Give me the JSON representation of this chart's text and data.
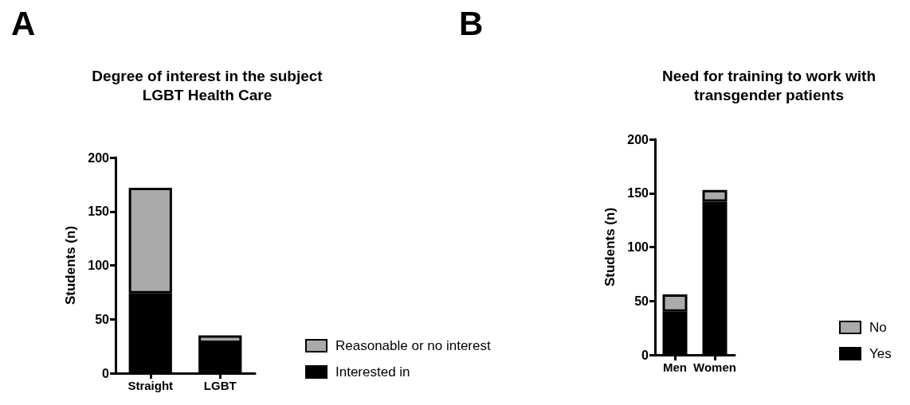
{
  "chart_data": [
    {
      "type": "bar",
      "title": "Degree of interest in the subject\nLGBT Health Care",
      "ylabel": "Students (n)",
      "annotations": [
        "A"
      ],
      "categories": [
        "Straight",
        "LGBT"
      ],
      "stacked": true,
      "legend": "right",
      "grid": false,
      "ylim": [
        0,
        200
      ],
      "yticks": [
        0,
        50,
        100,
        150,
        200
      ],
      "series": [
        {
          "name": "Interested in",
          "color": "#000000",
          "values": [
            74,
            28
          ]
        },
        {
          "name": "Reasonable or no interest",
          "color": "#aaaaaa",
          "values": [
            98,
            7
          ]
        }
      ]
    },
    {
      "type": "bar",
      "title": "Need for training to work with\ntransgender patients",
      "ylabel": "Students (n)",
      "annotations": [
        "B"
      ],
      "categories": [
        "Men",
        "Women"
      ],
      "stacked": true,
      "legend": "right",
      "grid": false,
      "ylim": [
        0,
        200
      ],
      "yticks": [
        0,
        50,
        100,
        150,
        200
      ],
      "series": [
        {
          "name": "Yes",
          "color": "#000000",
          "values": [
            40,
            142
          ]
        },
        {
          "name": "No",
          "color": "#aaaaaa",
          "values": [
            16,
            11
          ]
        }
      ]
    }
  ]
}
